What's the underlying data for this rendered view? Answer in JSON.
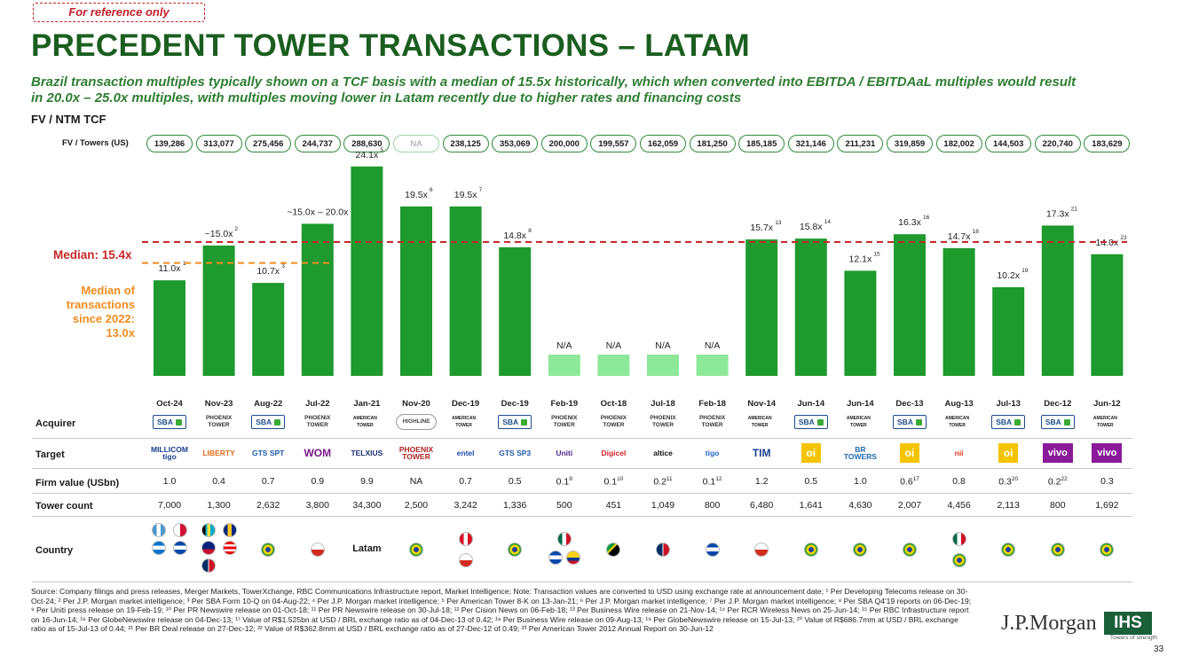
{
  "ref_label": "For reference only",
  "title": "PRECEDENT TOWER TRANSACTIONS – LATAM",
  "subtitle": "Brazil transaction multiples typically shown on a TCF basis with a median of 15.5x historically, which when converted into EBITDA / EBITDAaL multiples would result in 20.0x – 25.0x multiples, with multiples moving lower in Latam recently due to higher rates and financing costs",
  "metric_label": "FV / NTM TCF",
  "fv_towers_label": "FV / Towers (US)",
  "fv_towers": [
    "139,286",
    "313,077",
    "275,456",
    "244,737",
    "288,630",
    "NA",
    "238,125",
    "353,069",
    "200,000",
    "199,557",
    "162,059",
    "181,250",
    "185,185",
    "321,146",
    "211,231",
    "319,859",
    "182,002",
    "144,503",
    "220,740",
    "183,629"
  ],
  "median_label": "Median: 15.4x",
  "median2_label": "Median of transactions since 2022: 13.0x",
  "chart_data": {
    "type": "bar",
    "categories": [
      "Oct-24",
      "Nov-23",
      "Aug-22",
      "Jul-22",
      "Jan-21",
      "Nov-20",
      "Dec-19",
      "Dec-19",
      "Feb-19",
      "Oct-18",
      "Jul-18",
      "Feb-18",
      "Nov-14",
      "Jun-14",
      "Jun-14",
      "Dec-13",
      "Aug-13",
      "Jul-13",
      "Dec-12",
      "Jun-12"
    ],
    "values": [
      11.0,
      15.0,
      10.7,
      17.5,
      24.1,
      19.5,
      19.5,
      14.8,
      null,
      null,
      null,
      null,
      15.7,
      15.8,
      12.1,
      16.3,
      14.7,
      10.2,
      17.3,
      14.0
    ],
    "labels": [
      "11.0x",
      "~15.0x",
      "10.7x",
      "~15.0x – 20.0x",
      "24.1x",
      "19.5x",
      "19.5x",
      "14.8x",
      "N/A",
      "N/A",
      "N/A",
      "N/A",
      "15.7x",
      "15.8x",
      "12.1x",
      "16.3x",
      "14.7x",
      "10.2x",
      "17.3x",
      "14.0x"
    ],
    "footnotes": [
      "1",
      "2",
      "3",
      "4",
      "5",
      "6",
      "7",
      "8",
      "",
      "",
      "",
      "",
      "13",
      "14",
      "15",
      "16",
      "18",
      "19",
      "21",
      "23"
    ],
    "median": 15.4,
    "median_since_2022": 13.0,
    "ylim": [
      0,
      26
    ],
    "colors": {
      "bar": "#1e9a2e",
      "na_bar": "#8ee89a",
      "median": "#c62828",
      "median2": "#f28c1e"
    }
  },
  "row_labels": {
    "acquirer": "Acquirer",
    "target": "Target",
    "firm_value": "Firm value (USbn)",
    "tower_count": "Tower count",
    "country": "Country"
  },
  "acquirers": [
    "sba",
    "phoenix",
    "sba",
    "phoenix",
    "amt",
    "highline",
    "amt",
    "sba",
    "phoenix",
    "phoenix",
    "phoenix",
    "phoenix",
    "amt",
    "sba",
    "amt",
    "sba",
    "amt",
    "sba",
    "sba",
    "amt"
  ],
  "acquirer_text": {
    "sba": "SBA",
    "phoenix": "PHOENIX TOWER",
    "amt": "AMERICAN TOWER",
    "highline": "HIGHLINE"
  },
  "targets": [
    {
      "text": "MILLICOM tigo",
      "color": "#1c3f8f"
    },
    {
      "text": "LIBERTY",
      "color": "#e06a1a"
    },
    {
      "text": "GTS SPT",
      "color": "#1e5aa8"
    },
    {
      "text": "WOM",
      "color": "#7a1a8a"
    },
    {
      "text": "TELXIUS",
      "color": "#1a2e6e"
    },
    {
      "text": "PHOENIX TOWER",
      "color": "#b22222"
    },
    {
      "text": "entel",
      "color": "#1e4fa8"
    },
    {
      "text": "GTS SP3",
      "color": "#1e5aa8"
    },
    {
      "text": "Uniti",
      "color": "#4b2a88"
    },
    {
      "text": "Digicel",
      "color": "#d01f2a"
    },
    {
      "text": "altice",
      "color": "#111111"
    },
    {
      "text": "tigo",
      "color": "#1c66c8"
    },
    {
      "text": "TIM",
      "color": "#1b3f8f"
    },
    {
      "text": "oi",
      "color": "#f5c400"
    },
    {
      "text": "BR TOWERS",
      "color": "#1e6ab4"
    },
    {
      "text": "oi",
      "color": "#f5c400"
    },
    {
      "text": "nii",
      "color": "#e03a1e"
    },
    {
      "text": "oi",
      "color": "#f5c400"
    },
    {
      "text": "vivo",
      "color": "#8a1a9a"
    },
    {
      "text": "vivo",
      "color": "#8a1a9a"
    }
  ],
  "firm_values": [
    "1.0",
    "0.4",
    "0.7",
    "0.9",
    "9.9",
    "NA",
    "0.7",
    "0.5",
    "0.1",
    "0.1",
    "0.2",
    "0.1",
    "1.2",
    "0.5",
    "1.0",
    "0.6",
    "0.8",
    "0.3",
    "0.2",
    "0.3"
  ],
  "firm_value_fn": [
    "",
    "",
    "",
    "",
    "",
    "",
    "",
    "",
    "9",
    "10",
    "11",
    "12",
    "",
    "",
    "",
    "17",
    "",
    "20",
    "22",
    ""
  ],
  "tower_counts": [
    "7,000",
    "1,300",
    "2,632",
    "3,800",
    "34,300",
    "2,500",
    "3,242",
    "1,336",
    "500",
    "451",
    "1,049",
    "800",
    "6,480",
    "1,641",
    "4,630",
    "2,007",
    "4,456",
    "2,113",
    "800",
    "1,692"
  ],
  "countries": [
    [
      "gt",
      "pa",
      "hn",
      "sv"
    ],
    [
      "bs",
      "bb",
      "ky",
      "pr",
      "do"
    ],
    [
      "br"
    ],
    [
      "cl"
    ],
    [
      "latam"
    ],
    [
      "br"
    ],
    [
      "pe",
      "cl"
    ],
    [
      "br"
    ],
    [
      "mx",
      "sv",
      "co"
    ],
    [
      "jm"
    ],
    [
      "do"
    ],
    [
      "sv"
    ],
    [
      "cl"
    ],
    [
      "br"
    ],
    [
      "br"
    ],
    [
      "br"
    ],
    [
      "mx",
      "br"
    ],
    [
      "br"
    ],
    [
      "br"
    ],
    [
      "br"
    ]
  ],
  "latam_text": "Latam",
  "footnotes": "Source: Company filings and press releases, Merger Markets, TowerXchange, RBC Communications Infrastructure report, Market Intelligence; Note: Transaction values are converted to USD using exchange rate at announcement date; ¹ Per Developing Telecoms release on 30-Oct-24; ² Per J.P. Morgan market intelligence; ³ Per SBA Form 10-Q on 04-Aug-22; ⁴ Per J.P. Morgan market intelligence; ⁵ Per American Tower 8-K on 13-Jan-21; ⁶ Per J.P. Morgan market intelligence; ⁷ Per J.P. Morgan market intelligence; ⁸ Per SBA Q4'19 reports on 06-Dec-19; ⁹ Per Uniti press release on 19-Feb-19; ¹⁰ Per PR Newswire release on 01-Oct-18; ¹¹ Per PR Newswire release on 30-Jul-18; ¹² Per Cision News on 06-Feb-18; ¹³ Per Business Wire release on 21-Nov-14; ¹⁴ Per RCR Wireless News on 25-Jun-14; ¹⁵ Per RBC Infrastructure report on 16-Jun-14; ¹⁶ Per GlobeNewswire release on 04-Dec-13; ¹⁷ Value of R$1.525bn at USD / BRL exchange ratio as of 04-Dec-13 of 0.42; ¹⁸ Per Business Wire release on 09-Aug-13; ¹⁹ Per GlobeNewswire release on 15-Jul-13; ²⁰ Value of R$686.7mm at USD / BRL exchange ratio as of 15-Jul-13 of 0.44; ²¹ Per BR Deal release on 27-Dec-12; ²² Value of R$362.8mm at USD / BRL exchange ratio as of 27-Dec-12 of 0.49; ²³ Per American Tower 2012 Annual Report on 30-Jun-12",
  "jpm_logo": "J.P.Morgan",
  "ihs_logo": "IHS",
  "ihs_tagline": "Towers of strength",
  "page_number": "33"
}
